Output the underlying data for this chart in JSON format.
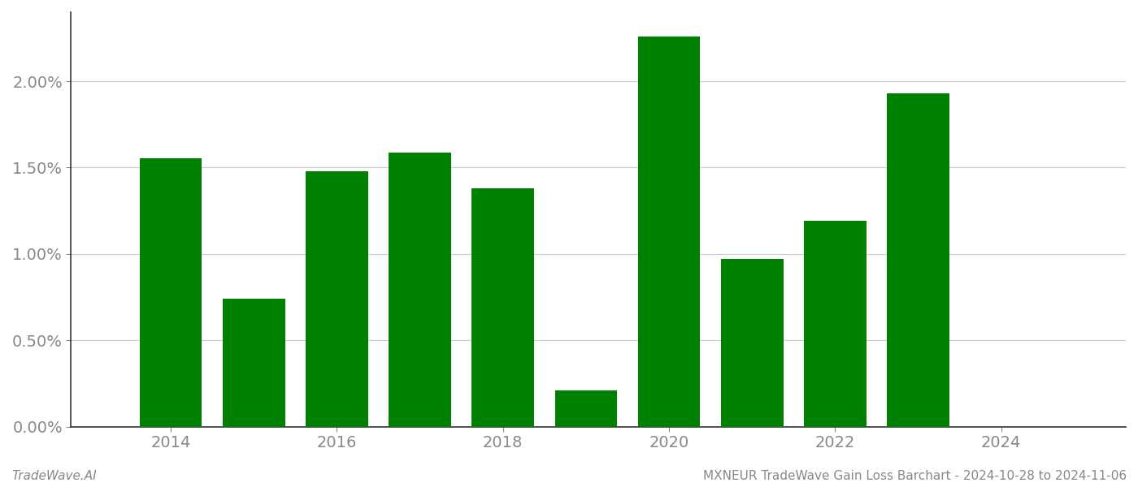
{
  "years": [
    2014,
    2015,
    2016,
    2017,
    2018,
    2019,
    2020,
    2021,
    2022,
    2023
  ],
  "values": [
    0.01554,
    0.0074,
    0.0148,
    0.01585,
    0.0138,
    0.0021,
    0.0226,
    0.0097,
    0.0119,
    0.0193
  ],
  "bar_color": "#008000",
  "title": "MXNEUR TradeWave Gain Loss Barchart - 2024-10-28 to 2024-11-06",
  "watermark": "TradeWave.AI",
  "ylim": [
    0,
    0.024
  ],
  "yticks": [
    0.0,
    0.005,
    0.01,
    0.015,
    0.02
  ],
  "ytick_labels": [
    "0.00%",
    "0.50%",
    "1.00%",
    "1.50%",
    "2.00%"
  ],
  "background_color": "#ffffff",
  "grid_color": "#cccccc",
  "bar_width": 0.75,
  "figsize": [
    14.0,
    6.0
  ],
  "dpi": 100,
  "xlim_left": 2012.8,
  "xlim_right": 2025.5
}
